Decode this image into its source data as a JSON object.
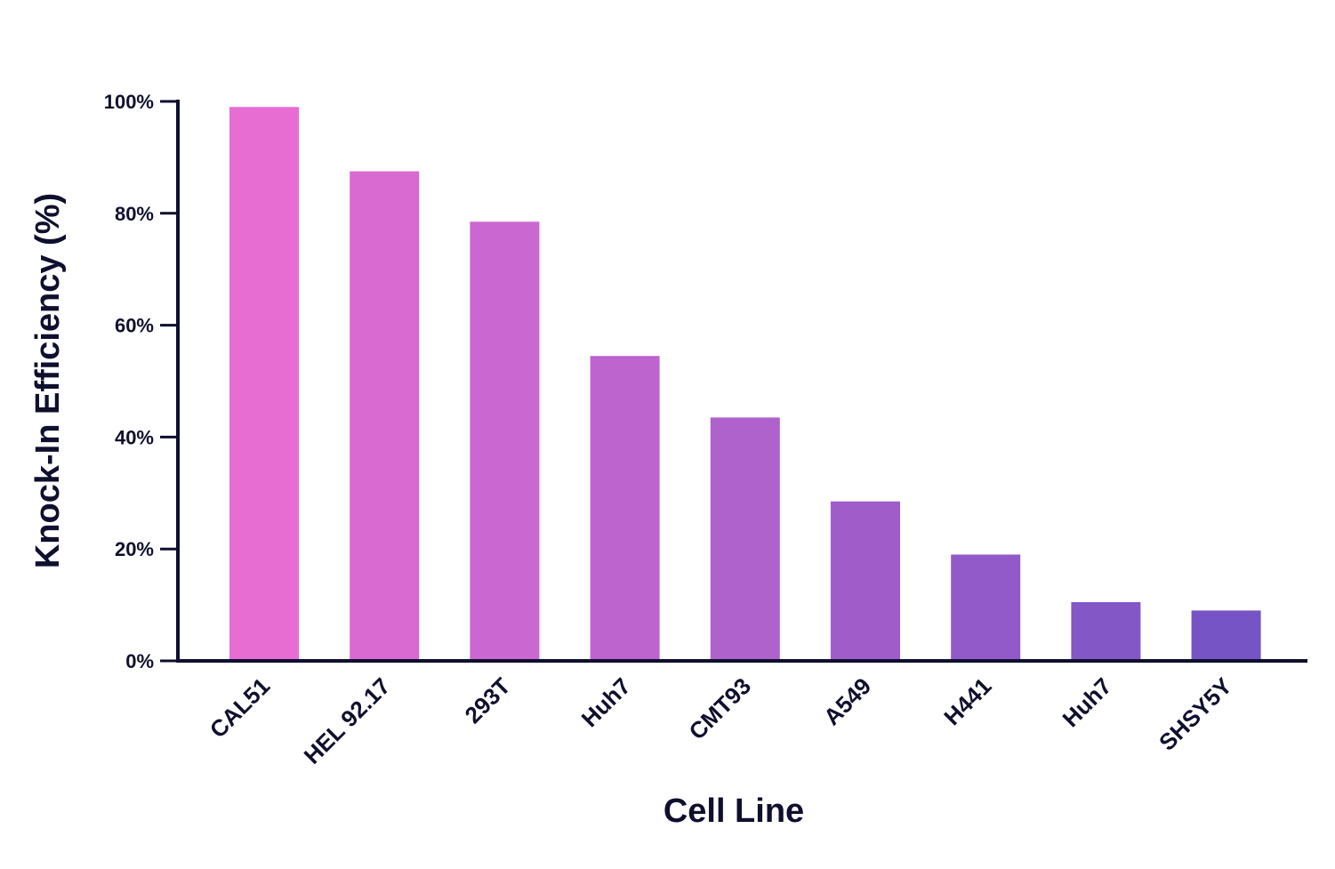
{
  "chart_data": {
    "type": "bar",
    "categories": [
      "CAL51",
      "HEL 92.17",
      "293T",
      "Huh7",
      "CMT93",
      "A549",
      "H441",
      "Huh7",
      "SHSY5Y"
    ],
    "values": [
      99,
      87.5,
      78.5,
      54.5,
      43.5,
      28.5,
      19,
      10.5,
      9
    ],
    "ylim": [
      0,
      100
    ],
    "yticks": [
      0,
      20,
      40,
      60,
      80,
      100
    ],
    "ytick_labels": [
      "0%",
      "20%",
      "40%",
      "60%",
      "80%",
      "100%"
    ],
    "xlabel": "Cell Line",
    "ylabel": "Knock-In Efficiency (%)",
    "grid": false,
    "legend": "none",
    "colors": {
      "bar_start": "#e76dd3",
      "bar_end": "#7654c5",
      "axis": "#0f0f2e"
    }
  }
}
